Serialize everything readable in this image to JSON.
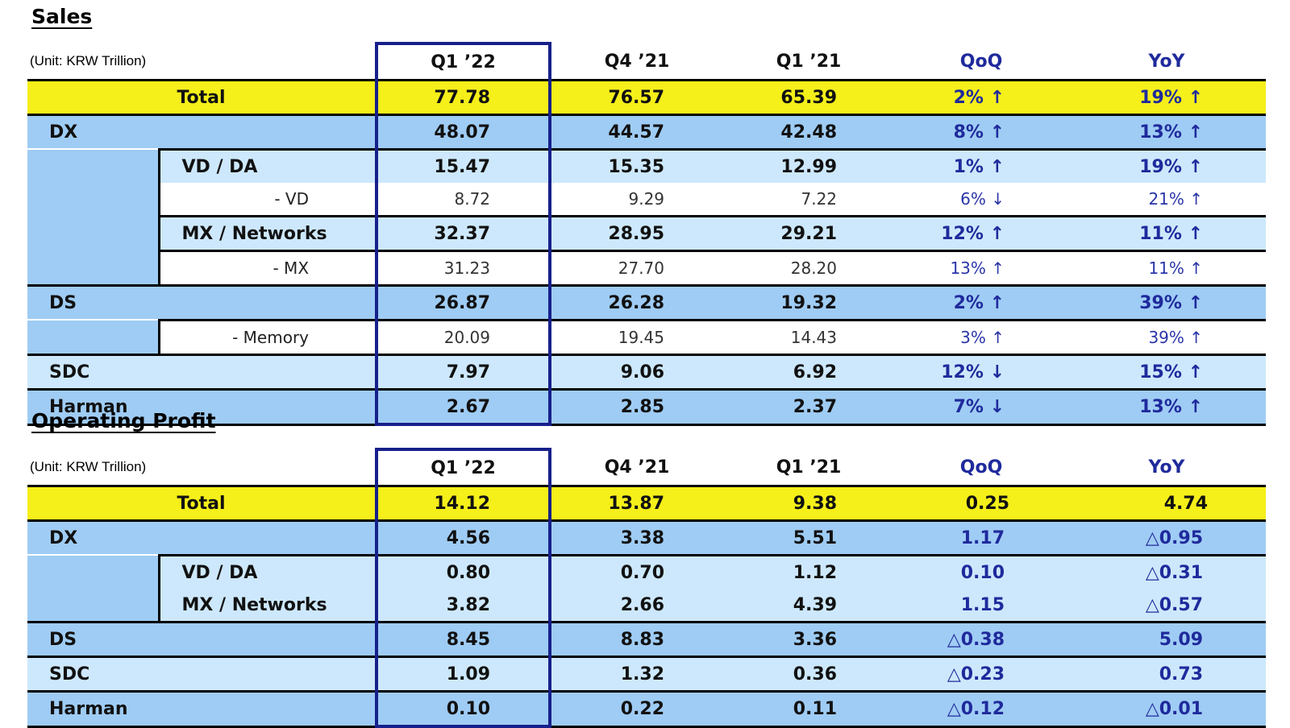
{
  "sales": {
    "title": "Sales",
    "unit": "(Unit: KRW Trillion)",
    "headers": [
      "Q1 ’22",
      "Q4 ’21",
      "Q1 ’21",
      "QoQ",
      "YoY"
    ],
    "total": {
      "label": "Total",
      "values": [
        "77.78",
        "76.57",
        "65.39",
        "2% ↑",
        "19% ↑"
      ]
    },
    "dx": {
      "label": "DX",
      "values": [
        "48.07",
        "44.57",
        "42.48",
        "8% ↑",
        "13% ↑"
      ]
    },
    "vd_da": {
      "label": "VD / DA",
      "values": [
        "15.47",
        "15.35",
        "12.99",
        "1% ↑",
        "19% ↑"
      ]
    },
    "vd": {
      "label": "- VD",
      "values": [
        "8.72",
        "9.29",
        "7.22",
        "6% ↓",
        "21% ↑"
      ]
    },
    "mx_networks": {
      "label": "MX / Networks",
      "values": [
        "32.37",
        "28.95",
        "29.21",
        "12% ↑",
        "11% ↑"
      ]
    },
    "mx": {
      "label": "- MX",
      "values": [
        "31.23",
        "27.70",
        "28.20",
        "13% ↑",
        "11% ↑"
      ]
    },
    "ds": {
      "label": "DS",
      "values": [
        "26.87",
        "26.28",
        "19.32",
        "2% ↑",
        "39% ↑"
      ]
    },
    "memory": {
      "label": "- Memory",
      "values": [
        "20.09",
        "19.45",
        "14.43",
        "3% ↑",
        "39% ↑"
      ]
    },
    "sdc": {
      "label": "SDC",
      "values": [
        "7.97",
        "9.06",
        "6.92",
        "12% ↓",
        "15% ↑"
      ]
    },
    "harman": {
      "label": "Harman",
      "values": [
        "2.67",
        "2.85",
        "2.37",
        "7% ↓",
        "13% ↑"
      ]
    }
  },
  "op": {
    "title": "Operating Profit",
    "unit": "(Unit: KRW Trillion)",
    "headers": [
      "Q1 ’22",
      "Q4 ’21",
      "Q1 ’21",
      "QoQ",
      "YoY"
    ],
    "total": {
      "label": "Total",
      "values": [
        "14.12",
        "13.87",
        "9.38",
        "0.25",
        "4.74"
      ]
    },
    "dx": {
      "label": "DX",
      "values": [
        "4.56",
        "3.38",
        "5.51",
        "1.17",
        "△0.95"
      ]
    },
    "vd_da": {
      "label": "VD / DA",
      "values": [
        "0.80",
        "0.70",
        "1.12",
        "0.10",
        "△0.31"
      ]
    },
    "mx_networks": {
      "label": "MX / Networks",
      "values": [
        "3.82",
        "2.66",
        "4.39",
        "1.15",
        "△0.57"
      ]
    },
    "ds": {
      "label": "DS",
      "values": [
        "8.45",
        "8.83",
        "3.36",
        "△0.38",
        "5.09"
      ]
    },
    "sdc": {
      "label": "SDC",
      "values": [
        "1.09",
        "1.32",
        "0.36",
        "△0.23",
        "0.73"
      ]
    },
    "harman": {
      "label": "Harman",
      "values": [
        "0.10",
        "0.22",
        "0.11",
        "△0.12",
        "△0.01"
      ]
    }
  }
}
